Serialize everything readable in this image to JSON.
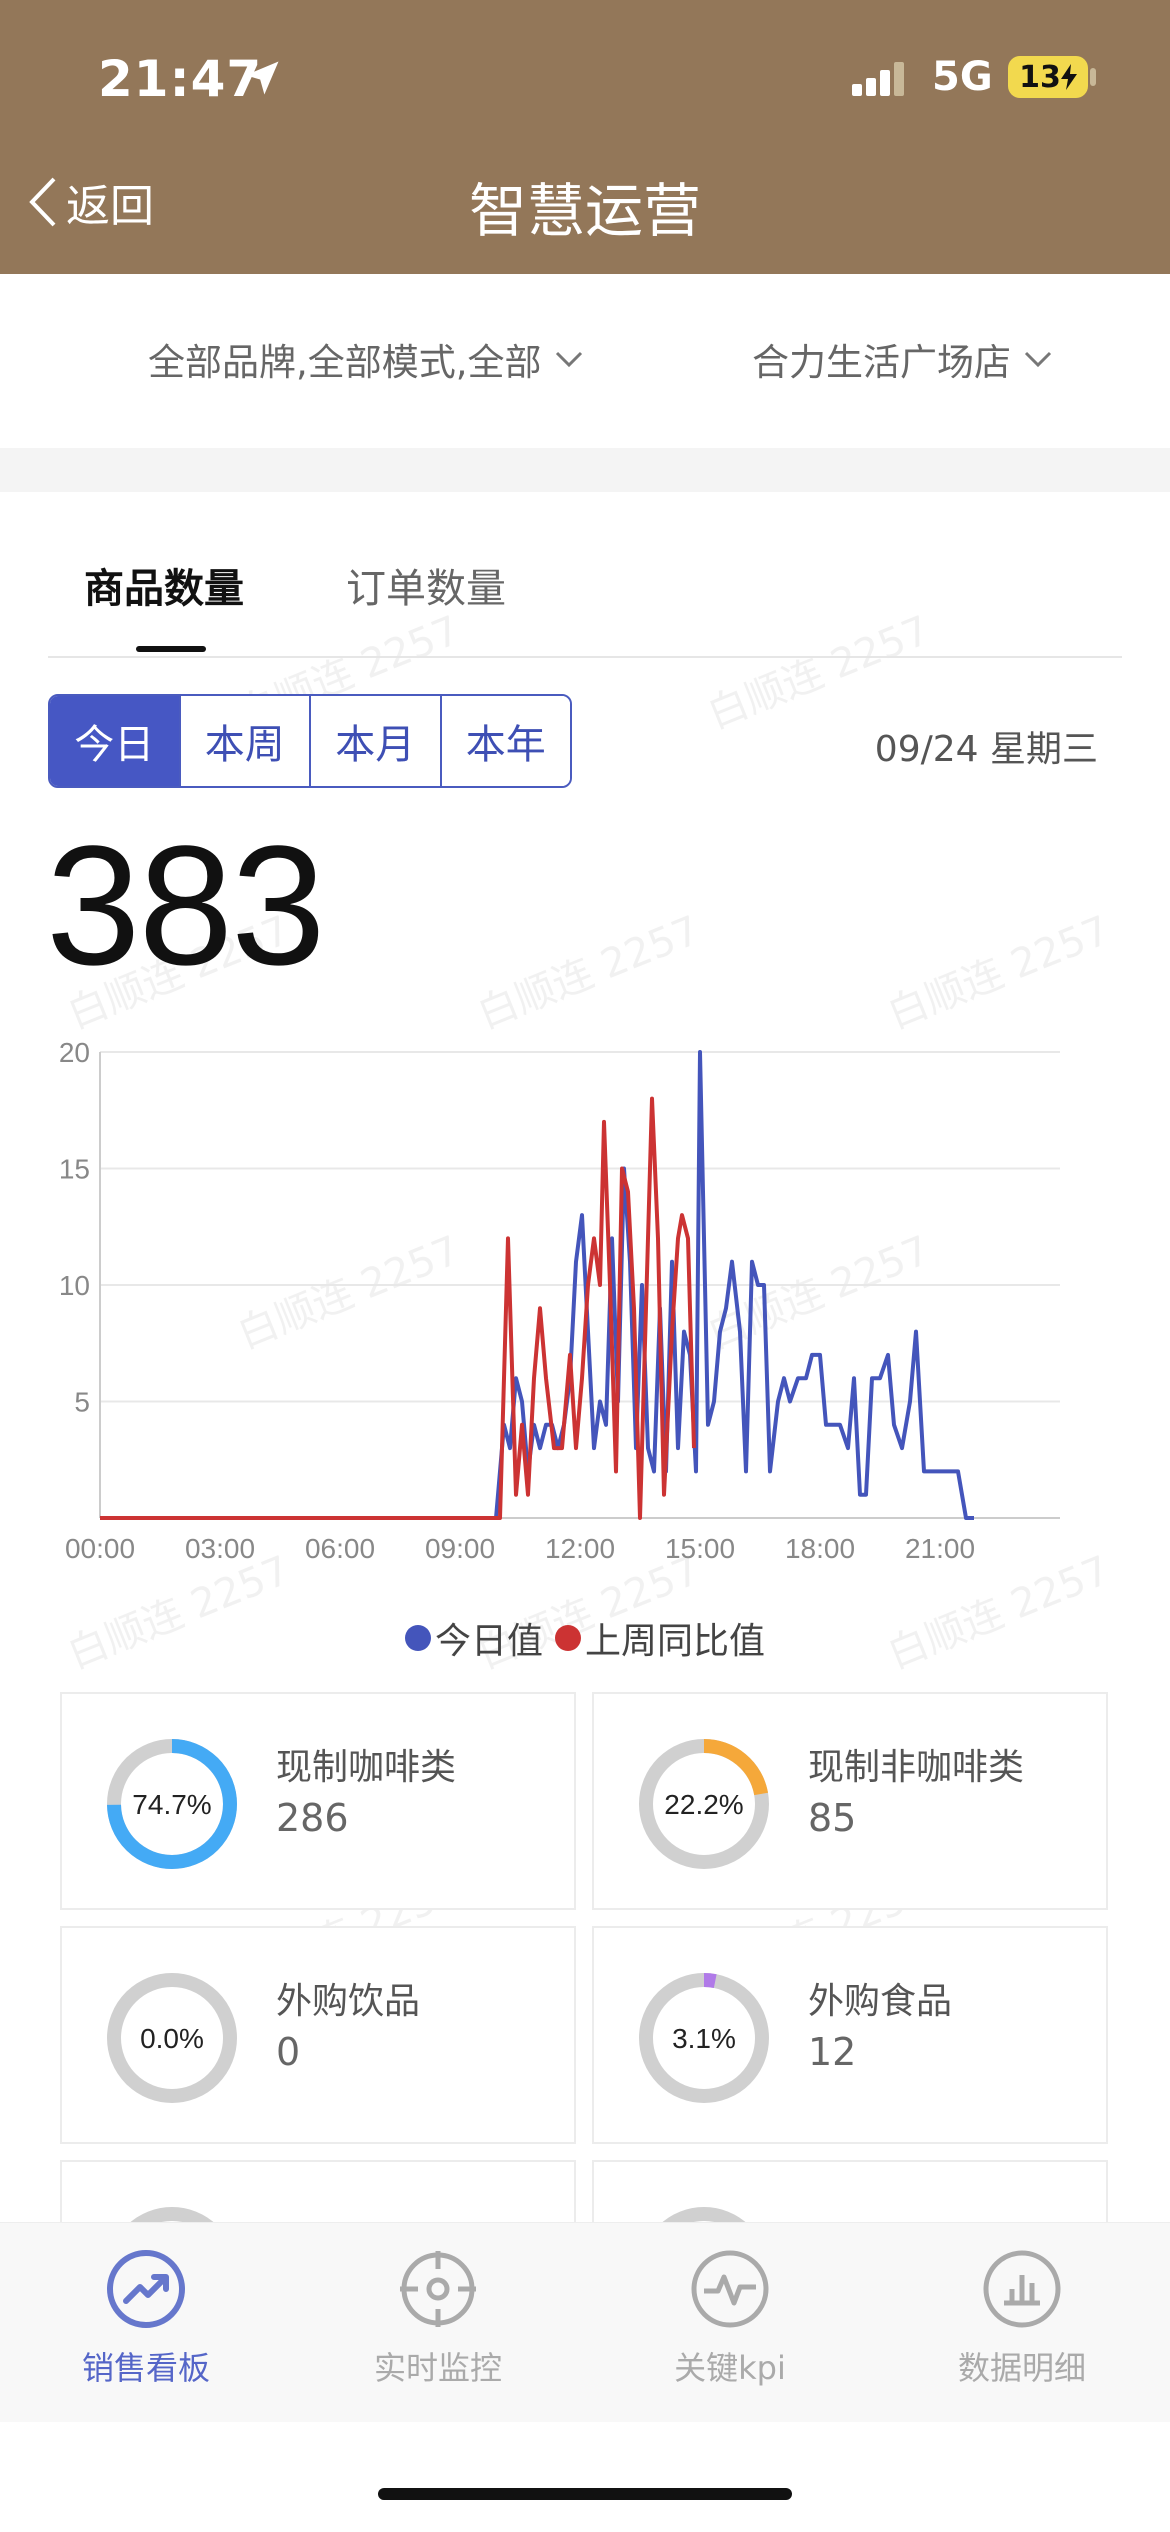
{
  "status_bar": {
    "time": "21:47",
    "network": "5G",
    "battery": "13"
  },
  "nav": {
    "back_label": "返回",
    "title": "智慧运营"
  },
  "filters": {
    "brand_mode": "全部品牌,全部模式,全部",
    "store": "合力生活广场店"
  },
  "tabs": [
    {
      "label": "商品数量",
      "active": true
    },
    {
      "label": "订单数量",
      "active": false
    }
  ],
  "period_selector": {
    "options": [
      "今日",
      "本周",
      "本月",
      "本年"
    ],
    "selected": "今日"
  },
  "date": "09/24 星期三",
  "total_count": "383",
  "chart_data": {
    "type": "line",
    "x_unit": "hour_of_day",
    "xlim": [
      0,
      24
    ],
    "ylim": [
      0,
      20
    ],
    "x_tick_labels": [
      "00:00",
      "03:00",
      "06:00",
      "09:00",
      "12:00",
      "15:00",
      "18:00",
      "21:00"
    ],
    "x_tick_values": [
      0,
      3,
      6,
      9,
      12,
      15,
      18,
      21
    ],
    "y_tick_labels": [
      "5",
      "10",
      "15",
      "20"
    ],
    "y_tick_values": [
      5,
      10,
      15,
      20
    ],
    "grid": true,
    "legend_position": "bottom-center",
    "series": [
      {
        "name": "今日值",
        "color": "#4455bb",
        "points": [
          [
            0,
            0
          ],
          [
            9.9,
            0
          ],
          [
            10.1,
            4
          ],
          [
            10.25,
            3
          ],
          [
            10.4,
            6
          ],
          [
            10.55,
            5
          ],
          [
            10.7,
            2
          ],
          [
            10.85,
            4
          ],
          [
            11,
            3
          ],
          [
            11.15,
            4
          ],
          [
            11.3,
            4
          ],
          [
            11.45,
            3
          ],
          [
            11.6,
            4
          ],
          [
            11.75,
            6
          ],
          [
            11.9,
            11
          ],
          [
            12.05,
            13
          ],
          [
            12.2,
            8
          ],
          [
            12.35,
            3
          ],
          [
            12.5,
            5
          ],
          [
            12.65,
            4
          ],
          [
            12.8,
            12
          ],
          [
            12.95,
            5
          ],
          [
            13.1,
            15
          ],
          [
            13.25,
            11
          ],
          [
            13.4,
            3
          ],
          [
            13.55,
            10
          ],
          [
            13.7,
            3
          ],
          [
            13.85,
            2
          ],
          [
            14,
            9
          ],
          [
            14.15,
            2
          ],
          [
            14.3,
            11
          ],
          [
            14.45,
            3
          ],
          [
            14.6,
            8
          ],
          [
            14.75,
            7
          ],
          [
            14.9,
            2
          ],
          [
            15,
            20
          ],
          [
            15.2,
            4
          ],
          [
            15.35,
            5
          ],
          [
            15.5,
            8
          ],
          [
            15.65,
            9
          ],
          [
            15.8,
            11
          ],
          [
            16,
            8
          ],
          [
            16.15,
            2
          ],
          [
            16.3,
            11
          ],
          [
            16.45,
            10
          ],
          [
            16.6,
            10
          ],
          [
            16.75,
            2
          ],
          [
            16.95,
            5
          ],
          [
            17.1,
            6
          ],
          [
            17.25,
            5
          ],
          [
            17.45,
            6
          ],
          [
            17.65,
            6
          ],
          [
            17.8,
            7
          ],
          [
            18,
            7
          ],
          [
            18.15,
            4
          ],
          [
            18.35,
            4
          ],
          [
            18.5,
            4
          ],
          [
            18.7,
            3
          ],
          [
            18.85,
            6
          ],
          [
            19,
            1
          ],
          [
            19.15,
            1
          ],
          [
            19.3,
            6
          ],
          [
            19.5,
            6
          ],
          [
            19.7,
            7
          ],
          [
            19.85,
            4
          ],
          [
            20.05,
            3
          ],
          [
            20.25,
            5
          ],
          [
            20.4,
            8
          ],
          [
            20.6,
            2
          ],
          [
            20.8,
            2
          ],
          [
            21,
            2
          ],
          [
            21.2,
            2
          ],
          [
            21.45,
            2
          ],
          [
            21.65,
            0
          ],
          [
            21.85,
            0
          ]
        ]
      },
      {
        "name": "上周同比值",
        "color": "#cc3333",
        "points": [
          [
            0,
            0
          ],
          [
            10,
            0
          ],
          [
            10.2,
            12
          ],
          [
            10.4,
            1
          ],
          [
            10.55,
            4
          ],
          [
            10.7,
            1
          ],
          [
            10.85,
            6
          ],
          [
            11,
            9
          ],
          [
            11.15,
            6
          ],
          [
            11.35,
            3
          ],
          [
            11.55,
            3
          ],
          [
            11.75,
            7
          ],
          [
            11.9,
            3
          ],
          [
            12.05,
            6
          ],
          [
            12.2,
            10
          ],
          [
            12.35,
            12
          ],
          [
            12.5,
            10
          ],
          [
            12.6,
            17
          ],
          [
            12.75,
            10
          ],
          [
            12.9,
            2
          ],
          [
            13.05,
            15
          ],
          [
            13.2,
            14
          ],
          [
            13.35,
            9
          ],
          [
            13.5,
            0
          ],
          [
            13.65,
            9
          ],
          [
            13.8,
            18
          ],
          [
            13.95,
            12
          ],
          [
            14.1,
            1
          ],
          [
            14.3,
            8
          ],
          [
            14.45,
            12
          ],
          [
            14.55,
            13
          ],
          [
            14.7,
            12
          ],
          [
            14.85,
            3
          ]
        ]
      }
    ]
  },
  "categories": [
    {
      "label": "现制咖啡类",
      "value": "286",
      "percent_text": "74.7%",
      "percent": 74.7,
      "color": "#44aaf5"
    },
    {
      "label": "现制非咖啡类",
      "value": "85",
      "percent_text": "22.2%",
      "percent": 22.2,
      "color": "#f5a83a"
    },
    {
      "label": "外购饮品",
      "value": "0",
      "percent_text": "0.0%",
      "percent": 0.0,
      "color": "#44aaf5"
    },
    {
      "label": "外购食品",
      "value": "12",
      "percent_text": "3.1%",
      "percent": 3.1,
      "color": "#b07ae8"
    }
  ],
  "bottom_tabs": [
    {
      "label": "销售看板",
      "icon": "trend-chart-icon",
      "active": true
    },
    {
      "label": "实时监控",
      "icon": "target-icon",
      "active": false
    },
    {
      "label": "关键kpi",
      "icon": "pulse-icon",
      "active": false
    },
    {
      "label": "数据明细",
      "icon": "bar-chart-icon",
      "active": false
    }
  ]
}
